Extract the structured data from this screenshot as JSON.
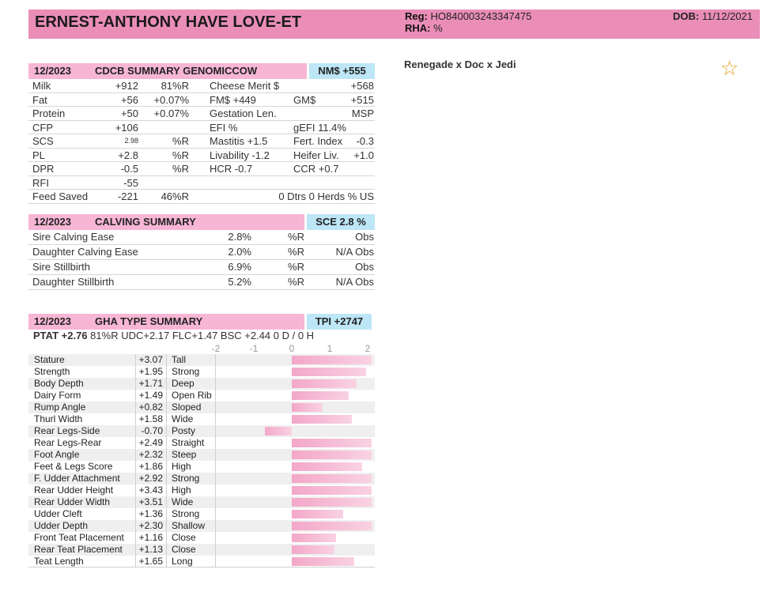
{
  "header": {
    "name": "ERNEST-ANTHONY HAVE LOVE-ET",
    "reg_label": "Reg:",
    "reg_value": "HO840003243347475",
    "rha_label": "RHA:",
    "rha_value": "%",
    "dob_label": "DOB:",
    "dob_value": "11/12/2021",
    "pedigree": "Renegade x Doc x Jedi",
    "star_icon": "☆"
  },
  "cdcb": {
    "date": "12/2023",
    "title": "CDCB SUMMARY GENOMICCOW",
    "badge": "NM$ +555",
    "rows": [
      {
        "c1": "Milk",
        "c2": "+912",
        "c3": "81%R",
        "c4": "Cheese Merit $",
        "c5": "",
        "c6": "+568"
      },
      {
        "c1": "Fat",
        "c2": "+56",
        "c3": "+0.07%",
        "c4": "FM$ +449",
        "c5": "GM$",
        "c6": "+515"
      },
      {
        "c1": "Protein",
        "c2": "+50",
        "c3": "+0.07%",
        "c4": "Gestation Len.",
        "c5": "",
        "c6": "MSP"
      },
      {
        "c1": "CFP",
        "c2": "+106",
        "c3": "",
        "c4": " EFI  %",
        "c5": "gEFI  11.4%",
        "c6": ""
      },
      {
        "c1": "SCS",
        "c2": "2.98",
        "c3": "%R",
        "c4": "Mastitis  +1.5",
        "c5": "Fert. Index",
        "c6": "-0.3"
      },
      {
        "c1": "PL",
        "c2": "+2.8",
        "c3": "%R",
        "c4": "Livability  -1.2",
        "c5": "Heifer Liv.",
        "c6": "+1.0"
      },
      {
        "c1": "DPR",
        "c2": "-0.5",
        "c3": "%R",
        "c4": "HCR  -0.7",
        "c5": "CCR  +0.7",
        "c6": ""
      },
      {
        "c1": "RFI",
        "c2": "-55",
        "c3": "",
        "c4": "",
        "c5": "",
        "c6": ""
      },
      {
        "c1": "Feed Saved",
        "c2": "-221",
        "c3": "46%R",
        "c4": "",
        "c5": "",
        "c6": "0 Dtrs  0 Herds  % US"
      }
    ]
  },
  "calving": {
    "date": "12/2023",
    "title": "CALVING SUMMARY",
    "badge": "SCE 2.8 %",
    "rows": [
      {
        "label": "Sire Calving Ease",
        "value": "2.8%",
        "rel": "%R",
        "obs": "Obs"
      },
      {
        "label": "Daughter Calving Ease",
        "value": "2.0%",
        "rel": "%R",
        "obs": "N/A Obs"
      },
      {
        "label": "Sire Stillbirth",
        "value": "6.9%",
        "rel": "%R",
        "obs": "Obs"
      },
      {
        "label": "Daughter Stillbirth",
        "value": "5.2%",
        "rel": "%R",
        "obs": "N/A Obs"
      }
    ]
  },
  "type": {
    "date": "12/2023",
    "title": "GHA TYPE SUMMARY",
    "badge": "TPI +2747",
    "ptat_label": "PTAT",
    "ptat_value": "+2.76",
    "ptat_rest": "81%R  UDC+2.17  FLC+1.47  BSC +2.44  0 D /  0 H",
    "axis": [
      "-2",
      "-1",
      "0",
      "1",
      "2"
    ],
    "traits": [
      {
        "name": "Stature",
        "value": "+3.07",
        "desc": "Tall",
        "num": 3.07
      },
      {
        "name": "Strength",
        "value": "+1.95",
        "desc": "Strong",
        "num": 1.95
      },
      {
        "name": "Body Depth",
        "value": "+1.71",
        "desc": "Deep",
        "num": 1.71
      },
      {
        "name": "Dairy Form",
        "value": "+1.49",
        "desc": "Open Rib",
        "num": 1.49
      },
      {
        "name": "Rump Angle",
        "value": "+0.82",
        "desc": "Sloped",
        "num": 0.82
      },
      {
        "name": "Thurl Width",
        "value": "+1.58",
        "desc": "Wide",
        "num": 1.58
      },
      {
        "name": "Rear Legs-Side",
        "value": "-0.70",
        "desc": "Posty",
        "num": -0.7
      },
      {
        "name": "Rear Legs-Rear",
        "value": "+2.49",
        "desc": "Straight",
        "num": 2.49
      },
      {
        "name": "Foot Angle",
        "value": "+2.32",
        "desc": "Steep",
        "num": 2.32
      },
      {
        "name": "Feet & Legs Score",
        "value": "+1.86",
        "desc": "High",
        "num": 1.86
      },
      {
        "name": "F. Udder Attachment",
        "value": "+2.92",
        "desc": "Strong",
        "num": 2.92
      },
      {
        "name": "Rear Udder Height",
        "value": "+3.43",
        "desc": "High",
        "num": 3.43
      },
      {
        "name": "Rear Udder Width",
        "value": "+3.51",
        "desc": "Wide",
        "num": 3.51
      },
      {
        "name": "Udder Cleft",
        "value": "+1.36",
        "desc": "Strong",
        "num": 1.36
      },
      {
        "name": "Udder Depth",
        "value": "+2.30",
        "desc": "Shallow",
        "num": 2.3
      },
      {
        "name": "Front Teat Placement",
        "value": "+1.16",
        "desc": "Close",
        "num": 1.16
      },
      {
        "name": "Rear Teat Placement",
        "value": "+1.13",
        "desc": "Close",
        "num": 1.13
      },
      {
        "name": "Teat Length",
        "value": "+1.65",
        "desc": "Long",
        "num": 1.65
      }
    ]
  },
  "colors": {
    "banner": "#ea8eb8",
    "section_pink": "#f6b6d4",
    "section_blue": "#bde6f6",
    "bar": "#f3a7c8",
    "star": "#e5a022"
  }
}
